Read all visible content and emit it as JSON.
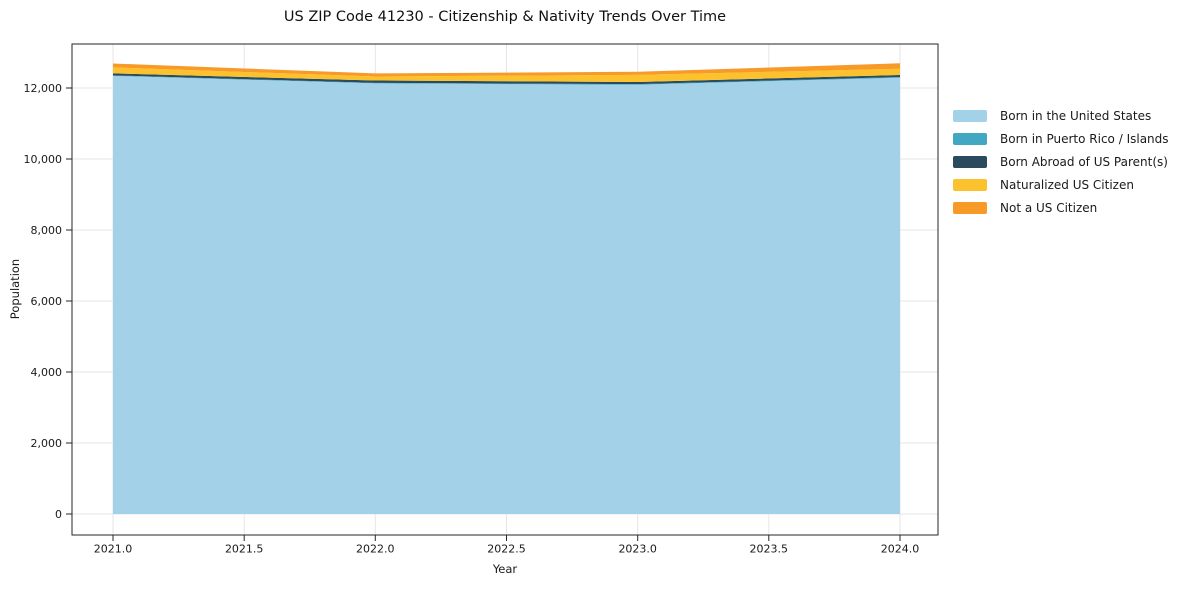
{
  "chart_data": {
    "type": "area",
    "stacked": true,
    "title": "US ZIP Code 41230 - Citizenship & Nativity Trends Over Time",
    "xlabel": "Year",
    "ylabel": "Population",
    "x": [
      2021,
      2022,
      2023,
      2024
    ],
    "series": [
      {
        "name": "Born in the United States",
        "color": "#a2d1e8",
        "values": [
          12340,
          12130,
          12090,
          12290
        ]
      },
      {
        "name": "Born in Puerto Rico / Islands",
        "color": "#42a7c1",
        "values": [
          15,
          15,
          20,
          20
        ]
      },
      {
        "name": "Born Abroad of US Parent(s)",
        "color": "#2a4a5e",
        "values": [
          55,
          65,
          60,
          55
        ]
      },
      {
        "name": "Naturalized US Citizen",
        "color": "#fcc22e",
        "values": [
          170,
          115,
          200,
          175
        ]
      },
      {
        "name": "Not a US Citizen",
        "color": "#f79a28",
        "values": [
          110,
          85,
          85,
          155
        ]
      }
    ],
    "x_ticks": [
      {
        "value": 2021.0,
        "label": "2021.0"
      },
      {
        "value": 2021.5,
        "label": "2021.5"
      },
      {
        "value": 2022.0,
        "label": "2022.0"
      },
      {
        "value": 2022.5,
        "label": "2022.5"
      },
      {
        "value": 2023.0,
        "label": "2023.0"
      },
      {
        "value": 2023.5,
        "label": "2023.5"
      },
      {
        "value": 2024.0,
        "label": "2024.0"
      }
    ],
    "y_ticks": [
      {
        "value": 0,
        "label": "0"
      },
      {
        "value": 2000,
        "label": "2,000"
      },
      {
        "value": 4000,
        "label": "4,000"
      },
      {
        "value": 6000,
        "label": "6,000"
      },
      {
        "value": 8000,
        "label": "8,000"
      },
      {
        "value": 10000,
        "label": "10,000"
      },
      {
        "value": 12000,
        "label": "12,000"
      }
    ],
    "xlim": [
      2020.84,
      2024.16
    ],
    "ylim": [
      -620,
      13300
    ],
    "grid": true,
    "legend_position": "right-outside",
    "colors": {
      "grid": "#e6e6e6",
      "spine": "#262626",
      "text": "#1a1a1a",
      "background": "#ffffff"
    }
  }
}
